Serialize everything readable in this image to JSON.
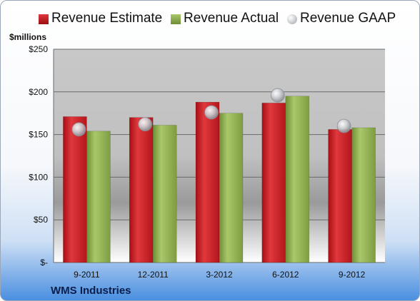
{
  "chart_data": {
    "type": "bar",
    "units_label": "$millions",
    "categories": [
      "9-2011",
      "12-2011",
      "3-2012",
      "6-2012",
      "9-2012"
    ],
    "series": [
      {
        "name": "Revenue Estimate",
        "kind": "bar",
        "color": "#c0151b",
        "values": [
          171,
          170,
          188,
          187,
          156
        ]
      },
      {
        "name": "Revenue Actual",
        "kind": "bar",
        "color": "#8aac4a",
        "values": [
          154,
          161,
          175,
          195,
          158
        ]
      },
      {
        "name": "Revenue GAAP",
        "kind": "marker",
        "color": "#b8bcc2",
        "values": [
          156,
          162,
          176,
          196,
          160
        ]
      }
    ],
    "ylim": [
      0,
      250
    ],
    "yticks": [
      0,
      50,
      100,
      150,
      200,
      250
    ],
    "ytick_labels": [
      "$-",
      "$50",
      "$100",
      "$150",
      "$200",
      "$250"
    ],
    "grid": true,
    "legend_position": "top",
    "footer": "WMS Industries"
  }
}
